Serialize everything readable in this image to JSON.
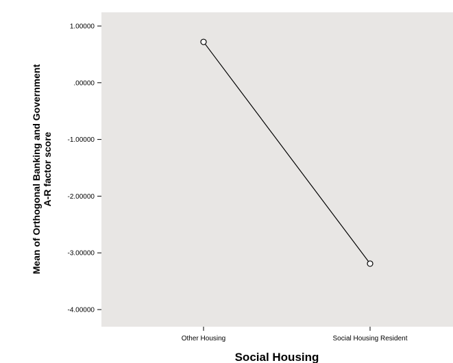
{
  "chart_data": {
    "type": "line",
    "title": "",
    "xlabel": "Social Housing",
    "ylabel_lines": [
      "Mean of Orthogonal Banking and Government",
      "A-R factor score"
    ],
    "categories": [
      "Other Housing",
      "Social Housing Resident"
    ],
    "series": [
      {
        "values": [
          0.72,
          -3.19
        ]
      }
    ],
    "yticks": [
      1.0,
      0.0,
      -1.0,
      -2.0,
      -3.0,
      -4.0
    ],
    "ytick_labels": [
      "1.00000",
      ".00000",
      "-1.00000",
      "-2.00000",
      "-3.00000",
      "-4.00000"
    ],
    "ylim": [
      -4.2,
      1.25
    ],
    "grid": false,
    "marker": "open-circle",
    "colors": {
      "plot_bg": "#e8e6e4",
      "line": "#000000",
      "marker_fill": "#ffffff"
    }
  }
}
